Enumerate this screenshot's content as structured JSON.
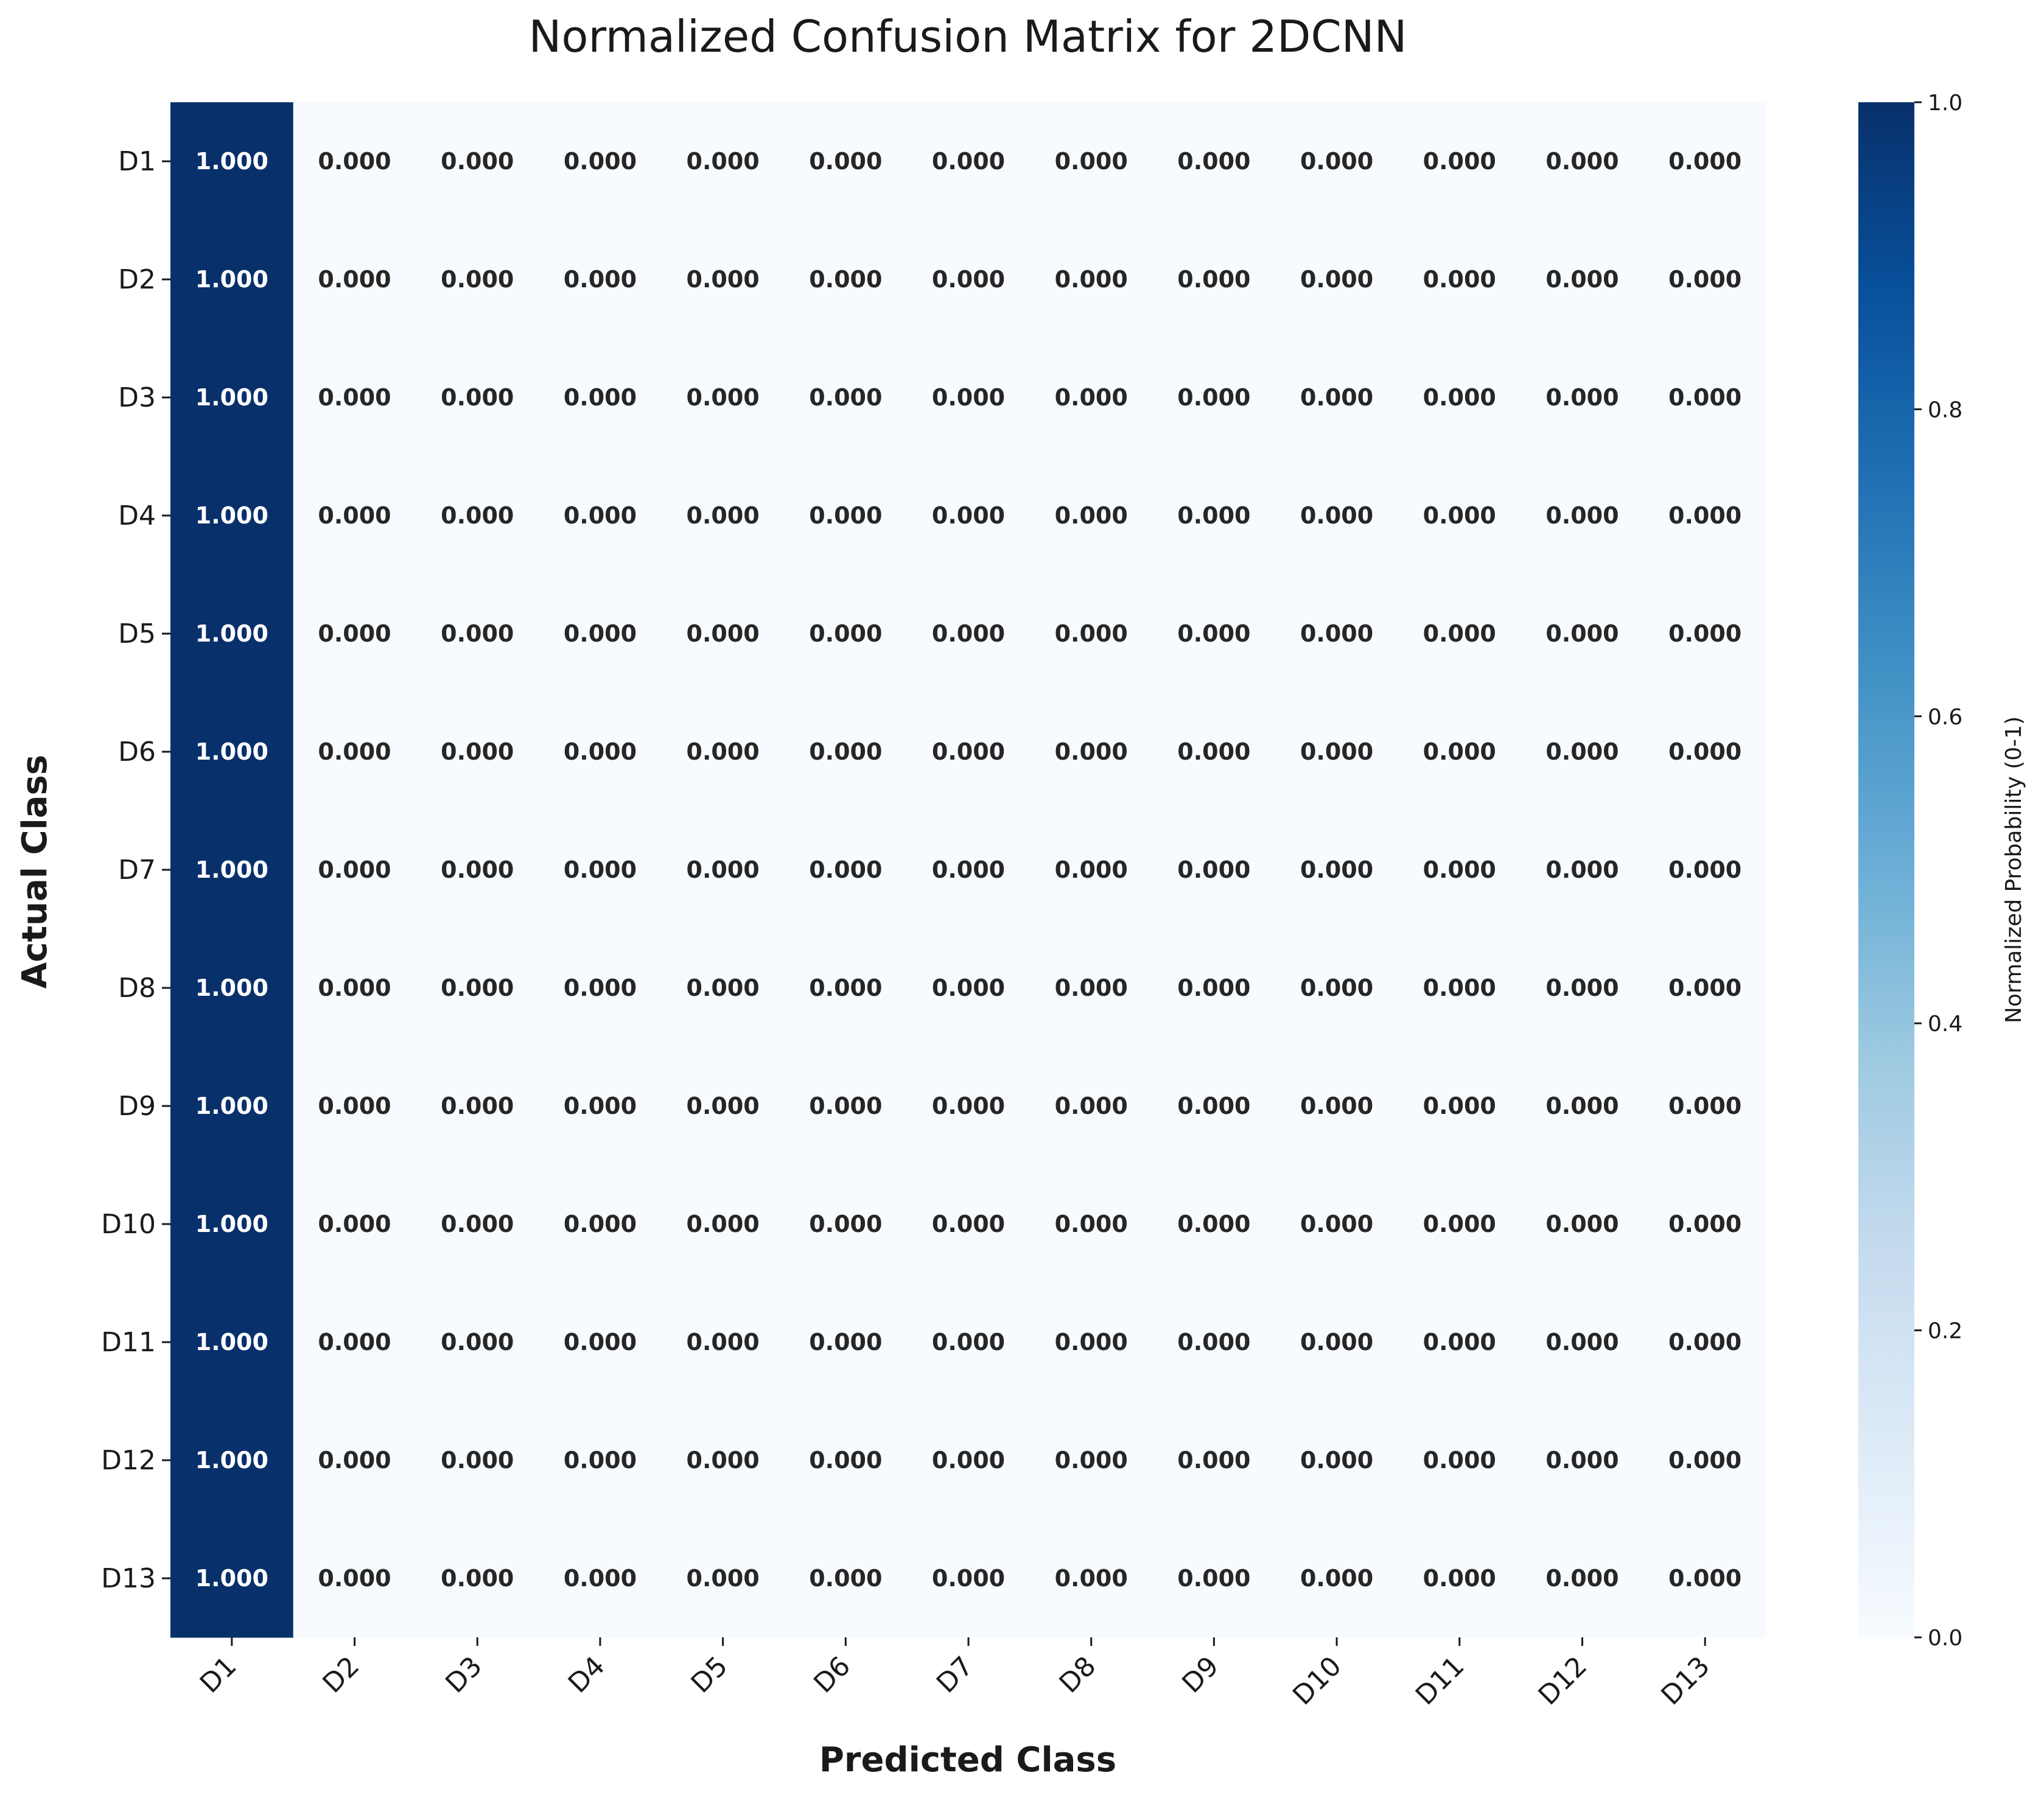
{
  "chart_data": {
    "type": "heatmap",
    "title": "Normalized Confusion Matrix for 2DCNN",
    "xlabel": "Predicted Class",
    "ylabel": "Actual Class",
    "x_categories": [
      "D1",
      "D2",
      "D3",
      "D4",
      "D5",
      "D6",
      "D7",
      "D8",
      "D9",
      "D10",
      "D11",
      "D12",
      "D13"
    ],
    "y_categories": [
      "D1",
      "D2",
      "D3",
      "D4",
      "D5",
      "D6",
      "D7",
      "D8",
      "D9",
      "D10",
      "D11",
      "D12",
      "D13"
    ],
    "values": [
      [
        1,
        0,
        0,
        0,
        0,
        0,
        0,
        0,
        0,
        0,
        0,
        0,
        0
      ],
      [
        1,
        0,
        0,
        0,
        0,
        0,
        0,
        0,
        0,
        0,
        0,
        0,
        0
      ],
      [
        1,
        0,
        0,
        0,
        0,
        0,
        0,
        0,
        0,
        0,
        0,
        0,
        0
      ],
      [
        1,
        0,
        0,
        0,
        0,
        0,
        0,
        0,
        0,
        0,
        0,
        0,
        0
      ],
      [
        1,
        0,
        0,
        0,
        0,
        0,
        0,
        0,
        0,
        0,
        0,
        0,
        0
      ],
      [
        1,
        0,
        0,
        0,
        0,
        0,
        0,
        0,
        0,
        0,
        0,
        0,
        0
      ],
      [
        1,
        0,
        0,
        0,
        0,
        0,
        0,
        0,
        0,
        0,
        0,
        0,
        0
      ],
      [
        1,
        0,
        0,
        0,
        0,
        0,
        0,
        0,
        0,
        0,
        0,
        0,
        0
      ],
      [
        1,
        0,
        0,
        0,
        0,
        0,
        0,
        0,
        0,
        0,
        0,
        0,
        0
      ],
      [
        1,
        0,
        0,
        0,
        0,
        0,
        0,
        0,
        0,
        0,
        0,
        0,
        0
      ],
      [
        1,
        0,
        0,
        0,
        0,
        0,
        0,
        0,
        0,
        0,
        0,
        0,
        0
      ],
      [
        1,
        0,
        0,
        0,
        0,
        0,
        0,
        0,
        0,
        0,
        0,
        0,
        0
      ],
      [
        1,
        0,
        0,
        0,
        0,
        0,
        0,
        0,
        0,
        0,
        0,
        0,
        0
      ]
    ],
    "value_format": "0.000",
    "colorbar": {
      "label": "Normalized Probability (0-1)",
      "range": [
        0,
        1
      ],
      "ticks": [
        "0.0",
        "0.2",
        "0.4",
        "0.6",
        "0.8",
        "1.0"
      ]
    },
    "colormap": [
      "#f7fbff",
      "#deebf7",
      "#c6dbef",
      "#9ecae1",
      "#6baed6",
      "#4292c6",
      "#2171b5",
      "#08519c",
      "#08306b"
    ],
    "text_color_dark": "#262626",
    "text_color_light": "#ffffff"
  }
}
